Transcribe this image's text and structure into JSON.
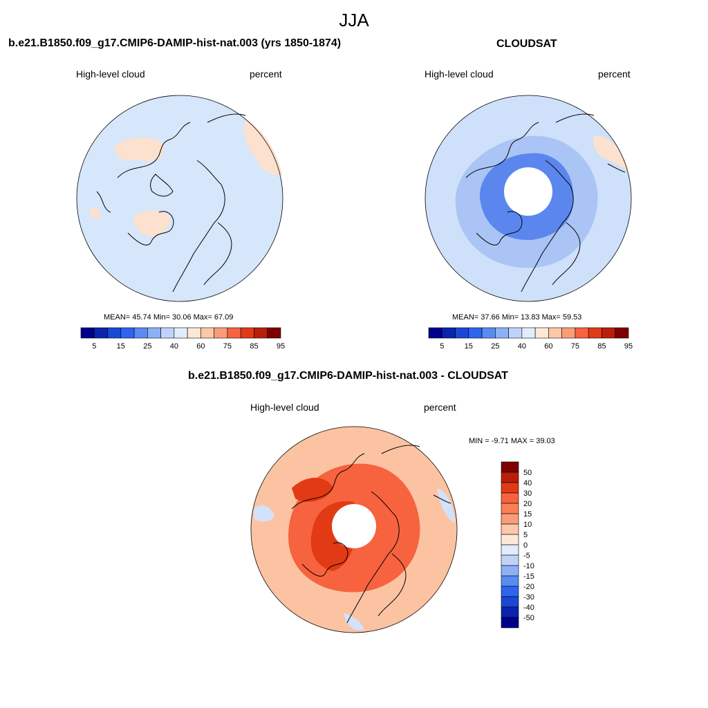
{
  "figure": {
    "title": "JJA"
  },
  "panels": [
    {
      "id": "model",
      "title": "b.e21.B1850.f09_g17.CMIP6-DAMIP-hist-nat.003 (yrs 1850-1874)",
      "left_label": "High-level cloud",
      "right_label": "percent",
      "stats": "MEAN=  45.74  Min=  30.06  Max=  67.09"
    },
    {
      "id": "obs",
      "title": "CLOUDSAT",
      "left_label": "High-level cloud",
      "right_label": "percent",
      "stats": "MEAN=  37.66  Min=  13.83  Max=  59.53"
    },
    {
      "id": "diff",
      "title": "b.e21.B1850.f09_g17.CMIP6-DAMIP-hist-nat.003 - CLOUDSAT",
      "left_label": "High-level cloud",
      "right_label": "percent",
      "stats": "MIN =  -9.71 MAX =  39.03"
    }
  ],
  "chart_data": [
    {
      "type": "heatmap",
      "projection": "north-polar-stereographic",
      "title": "b.e21.B1850.f09_g17.CMIP6-DAMIP-hist-nat.003 (yrs 1850-1874)",
      "variable": "High-level cloud",
      "units": "percent",
      "mean": 45.74,
      "min": 30.06,
      "max": 67.09,
      "colorbar_tick_labels": [
        "5",
        "15",
        "25",
        "40",
        "60",
        "75",
        "85",
        "95"
      ]
    },
    {
      "type": "heatmap",
      "projection": "north-polar-stereographic",
      "title": "CLOUDSAT",
      "variable": "High-level cloud",
      "units": "percent",
      "mean": 37.66,
      "min": 13.83,
      "max": 59.53,
      "colorbar_tick_labels": [
        "5",
        "15",
        "25",
        "40",
        "60",
        "75",
        "85",
        "95"
      ]
    },
    {
      "type": "heatmap",
      "projection": "north-polar-stereographic",
      "title": "b.e21.B1850.f09_g17.CMIP6-DAMIP-hist-nat.003 - CLOUDSAT",
      "variable": "High-level cloud",
      "units": "percent",
      "min": -9.71,
      "max": 39.03,
      "colorbar_tick_labels": [
        "50",
        "40",
        "30",
        "20",
        "15",
        "10",
        "5",
        "0",
        "-5",
        "-10",
        "-15",
        "-20",
        "-30",
        "-40",
        "-50"
      ]
    }
  ],
  "palettes": {
    "abs": [
      "#00008b",
      "#0a24ae",
      "#1a47d6",
      "#2e64ee",
      "#5a8bf2",
      "#8db0f5",
      "#bfd3fa",
      "#e1ecfd",
      "#fde8d8",
      "#fcc8a8",
      "#fa9c78",
      "#f6633e",
      "#e23a14",
      "#b81e0a",
      "#7e0000"
    ],
    "diff": [
      "#7e0000",
      "#b81e0a",
      "#e23a14",
      "#f6633e",
      "#fa7f56",
      "#fa9c78",
      "#fcc8a8",
      "#fde8d8",
      "#e1ecfd",
      "#bfd3fa",
      "#8db0f5",
      "#5a8bf2",
      "#2e64ee",
      "#1a47d6",
      "#0a24ae",
      "#00008b"
    ]
  },
  "map_fill": {
    "model": {
      "base": "#d6e6fb",
      "warm": "#fce1cf"
    },
    "obs": {
      "base": "#cfe0fa",
      "ring": "#a9c4f5",
      "inner": "#5b86ee",
      "hole": "#ffffff"
    },
    "diff": {
      "base": "#fcc3a3",
      "ring": "#f6633e",
      "inner": "#e23a14",
      "hole": "#ffffff",
      "cool": "#d2e2fb"
    }
  },
  "coast_color": "#000000"
}
